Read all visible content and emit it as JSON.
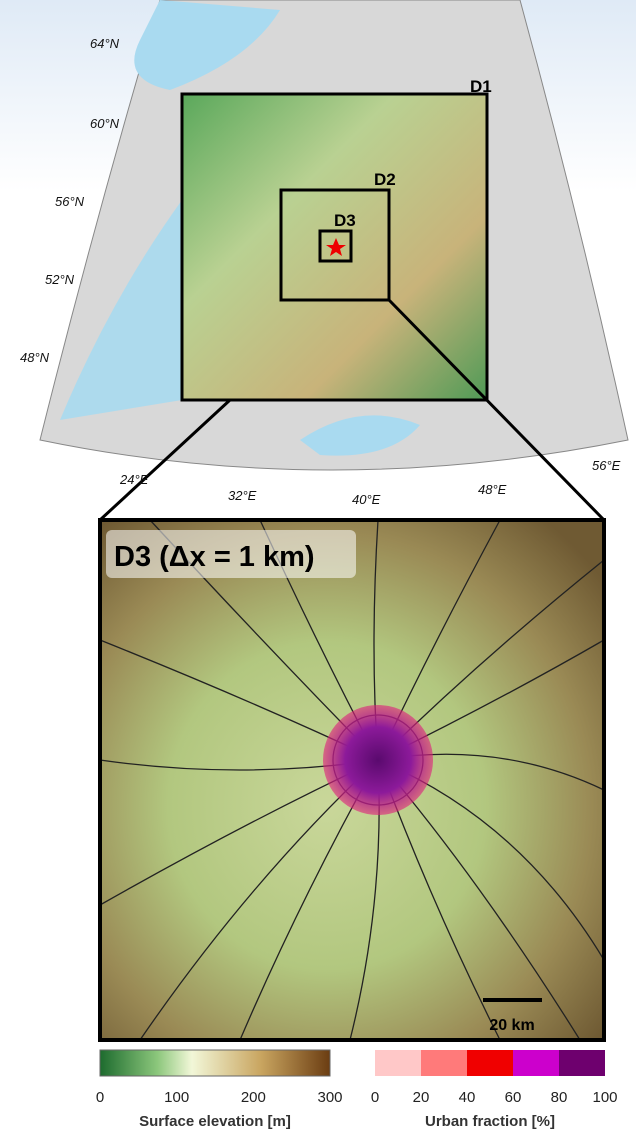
{
  "map": {
    "latitude_labels": [
      "64°N",
      "60°N",
      "56°N",
      "52°N",
      "48°N"
    ],
    "longitude_labels": [
      "24°E",
      "32°E",
      "40°E",
      "48°E",
      "56°E"
    ],
    "domains": [
      "D1",
      "D2",
      "D3"
    ],
    "inset_title": "D3 (Δx = 1 km)",
    "scale_bar": "20 km"
  },
  "colorbars": [
    {
      "label": "Surface elevation [m]",
      "ticks": [
        0,
        100,
        200,
        300
      ]
    },
    {
      "label": "Urban fraction [%]",
      "ticks": [
        0,
        20,
        40,
        60,
        80,
        100
      ]
    }
  ]
}
